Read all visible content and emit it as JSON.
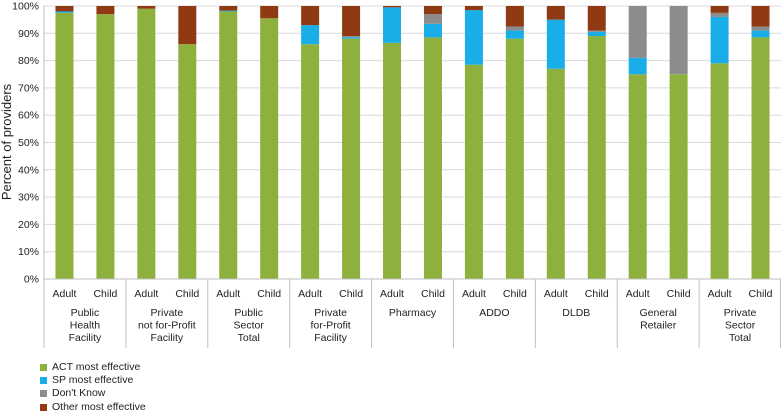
{
  "chart_data": {
    "type": "bar",
    "stacked": true,
    "ylabel": "Percent of providers",
    "ylim": [
      0,
      100
    ],
    "yticks": [
      "0%",
      "10%",
      "20%",
      "30%",
      "40%",
      "50%",
      "60%",
      "70%",
      "80%",
      "90%",
      "100%"
    ],
    "groups": [
      {
        "label": [
          "Public",
          "Health",
          "Facility"
        ]
      },
      {
        "label": [
          "Private",
          "not for-Profit",
          "Facility"
        ]
      },
      {
        "label": [
          "Public",
          "Sector",
          "Total"
        ]
      },
      {
        "label": [
          "Private",
          "for-Profit",
          "Facility"
        ]
      },
      {
        "label": [
          "Pharmacy"
        ]
      },
      {
        "label": [
          "ADDO"
        ]
      },
      {
        "label": [
          "DLDB"
        ]
      },
      {
        "label": [
          "General",
          "Retailer"
        ]
      },
      {
        "label": [
          "Private",
          "Sector",
          "Total"
        ]
      }
    ],
    "subcategories": [
      "Adult",
      "Child"
    ],
    "categories": [
      "Public Health Facility - Adult",
      "Public Health Facility - Child",
      "Private not for-Profit Facility - Adult",
      "Private not for-Profit Facility - Child",
      "Public Sector Total - Adult",
      "Public Sector Total - Child",
      "Private for-Profit Facility - Adult",
      "Private for-Profit Facility - Child",
      "Pharmacy - Adult",
      "Pharmacy - Child",
      "ADDO - Adult",
      "ADDO - Child",
      "DLDB - Adult",
      "DLDB - Child",
      "General Retailer - Adult",
      "General Retailer - Child",
      "Private Sector Total - Adult",
      "Private Sector Total - Child"
    ],
    "series": [
      {
        "name": "ACT most effective",
        "color": "#8DB13C",
        "values": [
          97.5,
          97,
          99,
          86,
          98,
          95.5,
          86,
          88,
          86.5,
          88.5,
          78.5,
          88,
          77,
          89,
          75,
          75,
          79,
          88.5
        ]
      },
      {
        "name": "SP most effective",
        "color": "#19AEE8",
        "values": [
          0.5,
          0,
          0,
          0,
          0.3,
          0,
          7,
          0.5,
          13,
          5,
          20,
          3,
          18,
          1.5,
          6,
          0,
          17,
          2.5
        ]
      },
      {
        "name": "Don't Know",
        "color": "#8C8C8C",
        "values": [
          0,
          0,
          0,
          0,
          0,
          0,
          0,
          0.5,
          0,
          3.5,
          0,
          1.5,
          0,
          0.5,
          19,
          25,
          1.5,
          1.5
        ]
      },
      {
        "name": "Other most effective",
        "color": "#8F3A12",
        "values": [
          2,
          3,
          1,
          14,
          1.7,
          4.5,
          7,
          11,
          0.5,
          3,
          1.5,
          7.5,
          5,
          9,
          0,
          0,
          2.5,
          7.5
        ]
      }
    ],
    "legend_position": "bottom-left",
    "grid": true
  }
}
